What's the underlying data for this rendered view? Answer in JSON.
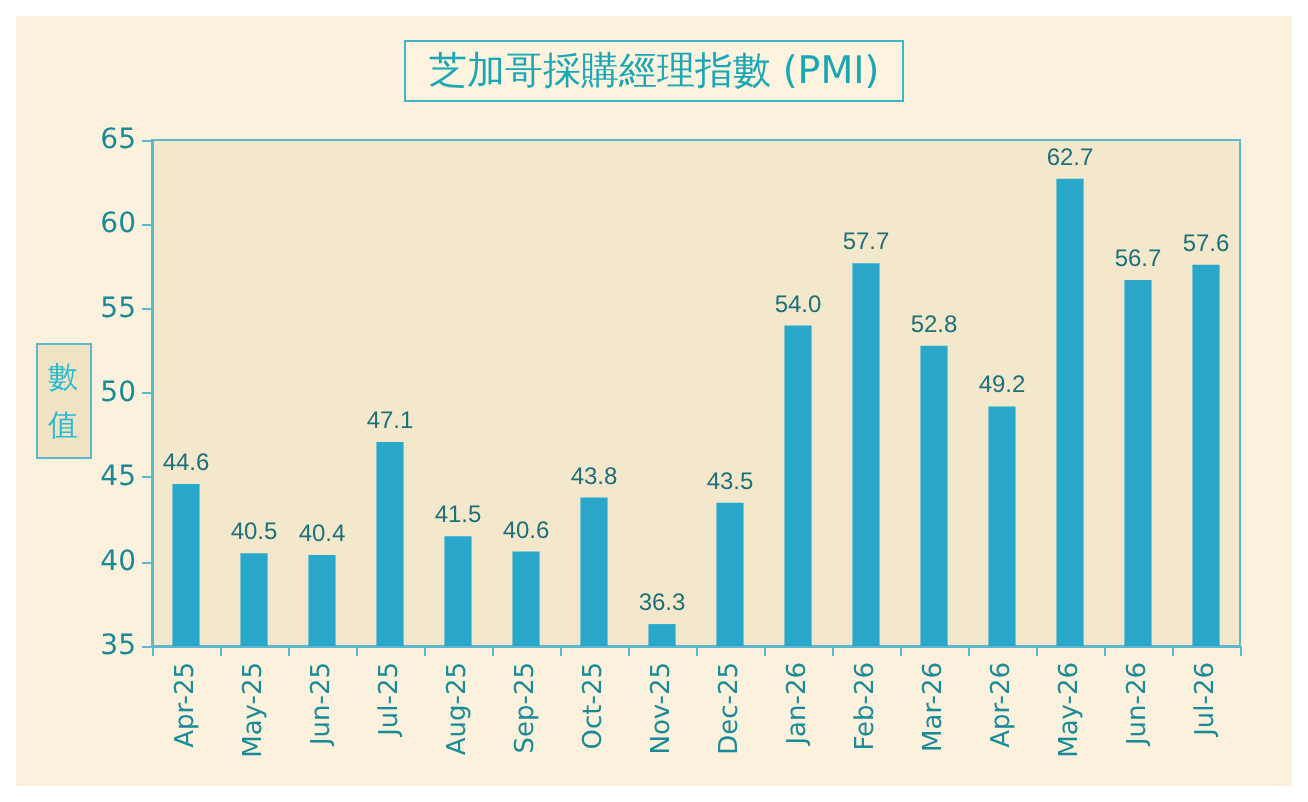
{
  "chart_data": {
    "type": "bar",
    "title": "芝加哥採購經理指數 (PMI)",
    "ylabel": "數值",
    "categories": [
      "Apr-25",
      "May-25",
      "Jun-25",
      "Jul-25",
      "Aug-25",
      "Sep-25",
      "Oct-25",
      "Nov-25",
      "Dec-25",
      "Jan-26",
      "Feb-26",
      "Mar-26",
      "Apr-26",
      "May-26",
      "Jun-26",
      "Jul-26"
    ],
    "values": [
      44.6,
      40.5,
      40.4,
      47.1,
      41.5,
      40.6,
      43.8,
      36.3,
      43.5,
      54.0,
      57.7,
      52.8,
      49.2,
      62.7,
      56.7,
      57.6
    ],
    "value_labels": [
      "44.6",
      "40.5",
      "40.4",
      "47.1",
      "41.5",
      "40.6",
      "43.8",
      "36.3",
      "43.5",
      "54.0",
      "57.7",
      "52.8",
      "49.2",
      "62.7",
      "56.7",
      "57.6"
    ],
    "color": "#2aa8cc",
    "ylim": [
      35,
      65
    ],
    "yticks": [
      35,
      40,
      45,
      50,
      55,
      60,
      65
    ],
    "grid": false
  }
}
